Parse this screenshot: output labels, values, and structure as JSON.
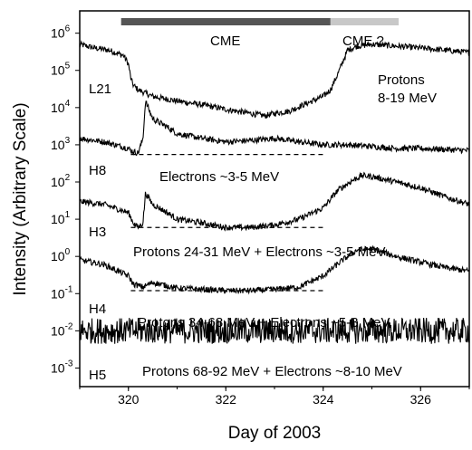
{
  "chart_data": {
    "type": "line",
    "xlabel": "Day of 2003",
    "ylabel": "Intensity (Arbitrary Scale)",
    "x_range": [
      319,
      327
    ],
    "x_ticks": [
      320,
      322,
      324,
      326
    ],
    "y_scale": "log",
    "y_range_log10": [
      -3.5,
      6.6
    ],
    "y_ticks": [
      {
        "base": "10",
        "exp": "6"
      },
      {
        "base": "10",
        "exp": "5"
      },
      {
        "base": "10",
        "exp": "4"
      },
      {
        "base": "10",
        "exp": "3"
      },
      {
        "base": "10",
        "exp": "2"
      },
      {
        "base": "10",
        "exp": "1"
      },
      {
        "base": "10",
        "exp": "0"
      },
      {
        "base": "10",
        "exp": "-1"
      },
      {
        "base": "10",
        "exp": "-2"
      },
      {
        "base": "10",
        "exp": "-3"
      }
    ],
    "bars": [
      {
        "label": "CME",
        "x_start": 319.85,
        "x_end": 324.15,
        "color": "#555555"
      },
      {
        "label": "CME ?",
        "x_start": 324.15,
        "x_end": 325.55,
        "color": "#c8c8c8"
      }
    ],
    "series": [
      {
        "name": "L21",
        "description": "Protons 8-19 MeV",
        "color": "#000000",
        "x": [
          319.0,
          319.3,
          319.6,
          319.9,
          320.0,
          320.05,
          320.1,
          320.2,
          320.5,
          321.0,
          321.5,
          322.0,
          322.5,
          322.8,
          323.0,
          323.3,
          323.6,
          324.0,
          324.15,
          324.3,
          324.5,
          324.7,
          325.0,
          325.5,
          326.0,
          326.5,
          327.0
        ],
        "y": [
          500000,
          400000,
          350000,
          250000,
          150000,
          60000,
          40000,
          30000,
          20000,
          15000,
          12000,
          9000,
          7000,
          6000,
          7000,
          8000,
          12000,
          20000,
          30000,
          80000,
          350000,
          450000,
          500000,
          450000,
          400000,
          350000,
          300000
        ]
      },
      {
        "name": "H8",
        "description": "Electrons ~3-5 MeV",
        "color": "#000000",
        "x": [
          319.0,
          319.5,
          320.0,
          320.05,
          320.2,
          320.3,
          320.35,
          320.5,
          320.8,
          321.0,
          321.5,
          322.0,
          322.5,
          323.0,
          323.5,
          324.0,
          324.5,
          325.0,
          325.5,
          326.0,
          326.5,
          327.0
        ],
        "y": [
          1500,
          1200,
          800,
          700,
          600,
          1500,
          15000,
          5000,
          3000,
          2000,
          1500,
          1200,
          1300,
          1500,
          1200,
          1000,
          1000,
          900,
          800,
          800,
          750,
          700
        ],
        "baseline": 550
      },
      {
        "name": "H3",
        "description": "Protons 24-31 MeV + Electrons ~3-5 MeV",
        "color": "#000000",
        "x": [
          319.0,
          319.5,
          320.0,
          320.1,
          320.2,
          320.3,
          320.35,
          320.5,
          320.8,
          321.0,
          321.5,
          322.0,
          322.5,
          323.0,
          323.5,
          324.0,
          324.3,
          324.6,
          324.8,
          325.0,
          325.5,
          326.0,
          326.5,
          327.0
        ],
        "y": [
          30,
          25,
          15,
          8,
          6,
          8,
          50,
          25,
          15,
          10,
          8,
          6,
          6,
          7,
          10,
          20,
          60,
          110,
          150,
          140,
          100,
          70,
          40,
          25
        ],
        "baseline": 6
      },
      {
        "name": "H4",
        "description": "Protons 34-68 MeV + Electrons ~5-8 MeV",
        "color": "#000000",
        "x": [
          319.0,
          319.5,
          320.0,
          320.1,
          320.3,
          320.5,
          321.0,
          321.5,
          322.0,
          322.5,
          323.0,
          323.5,
          324.0,
          324.4,
          324.7,
          325.0,
          325.5,
          326.0,
          326.5,
          327.0
        ],
        "y": [
          0.8,
          0.6,
          0.3,
          0.18,
          0.15,
          0.2,
          0.14,
          0.13,
          0.12,
          0.12,
          0.13,
          0.15,
          0.3,
          0.8,
          1.5,
          1.6,
          1.0,
          0.7,
          0.5,
          0.4
        ],
        "baseline": 0.12
      },
      {
        "name": "H5",
        "description": "Protons 68-92 MeV + Electrons ~8-10 MeV",
        "color": "#000000",
        "x": [
          319.0,
          320.0,
          321.0,
          322.0,
          323.0,
          324.0,
          325.0,
          326.0,
          327.0
        ],
        "y": [
          0.01,
          0.01,
          0.01,
          0.01,
          0.01,
          0.01,
          0.01,
          0.01,
          0.01
        ],
        "noise": "high"
      }
    ],
    "annotations": {
      "cme": "CME",
      "cme_q": "CME ?",
      "protons_l21_line1": "Protons",
      "protons_l21_line2": "8-19 MeV",
      "h8_desc": "Electrons ~3-5 MeV",
      "h3_desc": "Protons 24-31 MeV + Electrons ~3-5 MeV",
      "h4_desc": "Protons 34-68 MeV + Electrons ~5-8 MeV",
      "h5_desc": "Protons 68-92 MeV + Electrons ~8-10 MeV"
    },
    "grid": false,
    "legend": "none"
  }
}
